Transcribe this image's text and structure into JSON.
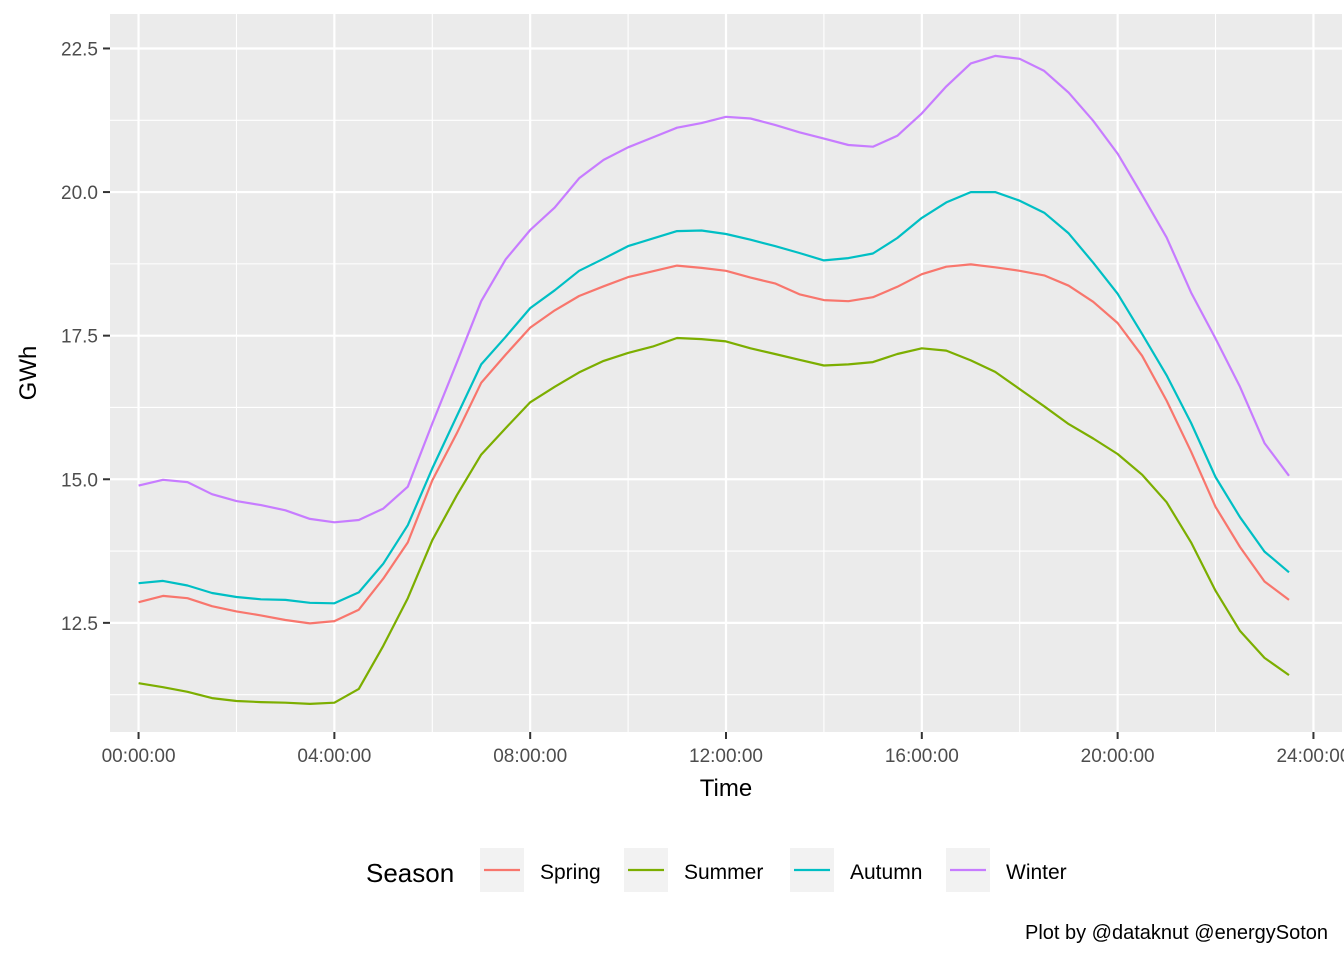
{
  "chart_data": {
    "type": "line",
    "xlabel": "Time",
    "ylabel": "GWh",
    "caption": "Plot by @dataknut @energySoton",
    "legend": {
      "title": "Season",
      "position": "bottom"
    },
    "grid": true,
    "x_unit": "time of day",
    "x": [
      "00:00:00",
      "00:30:00",
      "01:00:00",
      "01:30:00",
      "02:00:00",
      "02:30:00",
      "03:00:00",
      "03:30:00",
      "04:00:00",
      "04:30:00",
      "05:00:00",
      "05:30:00",
      "06:00:00",
      "06:30:00",
      "07:00:00",
      "07:30:00",
      "08:00:00",
      "08:30:00",
      "09:00:00",
      "09:30:00",
      "10:00:00",
      "10:30:00",
      "11:00:00",
      "11:30:00",
      "12:00:00",
      "12:30:00",
      "13:00:00",
      "13:30:00",
      "14:00:00",
      "14:30:00",
      "15:00:00",
      "15:30:00",
      "16:00:00",
      "16:30:00",
      "17:00:00",
      "17:30:00",
      "18:00:00",
      "18:30:00",
      "19:00:00",
      "19:30:00",
      "20:00:00",
      "20:30:00",
      "21:00:00",
      "21:30:00",
      "22:00:00",
      "22:30:00",
      "23:00:00",
      "23:30:00"
    ],
    "xlim": [
      "-00:35:00",
      "24:35:00"
    ],
    "x_ticks": [
      "00:00:00",
      "04:00:00",
      "08:00:00",
      "12:00:00",
      "16:00:00",
      "20:00:00",
      "24:00:00"
    ],
    "ylim": [
      10.6,
      23.1
    ],
    "y_ticks": [
      "12.5",
      "15.0",
      "17.5",
      "20.0",
      "22.5"
    ],
    "series": [
      {
        "name": "Spring",
        "color": "#F8766D",
        "values": [
          12.86,
          12.97,
          12.93,
          12.79,
          12.7,
          12.63,
          12.55,
          12.49,
          12.53,
          12.73,
          13.27,
          13.9,
          14.98,
          15.8,
          16.68,
          17.17,
          17.64,
          17.94,
          18.19,
          18.36,
          18.52,
          18.62,
          18.72,
          18.68,
          18.63,
          18.51,
          18.41,
          18.22,
          18.12,
          18.1,
          18.17,
          18.35,
          18.57,
          18.7,
          18.74,
          18.69,
          18.63,
          18.55,
          18.37,
          18.09,
          17.72,
          17.15,
          16.37,
          15.48,
          14.52,
          13.82,
          13.22,
          12.9
        ]
      },
      {
        "name": "Summer",
        "color": "#7CAE00",
        "values": [
          11.45,
          11.38,
          11.3,
          11.19,
          11.14,
          11.12,
          11.11,
          11.09,
          11.11,
          11.35,
          12.1,
          12.93,
          13.94,
          14.72,
          15.43,
          15.89,
          16.34,
          16.61,
          16.86,
          17.06,
          17.2,
          17.31,
          17.46,
          17.44,
          17.4,
          17.28,
          17.18,
          17.08,
          16.98,
          17.0,
          17.04,
          17.18,
          17.28,
          17.24,
          17.07,
          16.87,
          16.57,
          16.27,
          15.96,
          15.71,
          15.44,
          15.08,
          14.6,
          13.9,
          13.06,
          12.36,
          11.89,
          11.59
        ]
      },
      {
        "name": "Autumn",
        "color": "#00BFC4",
        "values": [
          13.19,
          13.23,
          13.15,
          13.02,
          12.95,
          12.91,
          12.9,
          12.85,
          12.84,
          13.03,
          13.53,
          14.2,
          15.19,
          16.1,
          17.0,
          17.48,
          17.98,
          18.29,
          18.63,
          18.84,
          19.06,
          19.19,
          19.32,
          19.33,
          19.27,
          19.17,
          19.06,
          18.94,
          18.81,
          18.85,
          18.93,
          19.2,
          19.55,
          19.82,
          20.0,
          20.0,
          19.85,
          19.64,
          19.28,
          18.77,
          18.23,
          17.53,
          16.81,
          15.98,
          15.04,
          14.34,
          13.74,
          13.38
        ]
      },
      {
        "name": "Winter",
        "color": "#C77CFF",
        "values": [
          14.89,
          14.99,
          14.95,
          14.74,
          14.62,
          14.55,
          14.46,
          14.31,
          14.25,
          14.29,
          14.49,
          14.87,
          15.97,
          17.03,
          18.1,
          18.83,
          19.34,
          19.73,
          20.24,
          20.56,
          20.78,
          20.95,
          21.12,
          21.2,
          21.31,
          21.28,
          21.17,
          21.04,
          20.93,
          20.82,
          20.79,
          20.98,
          21.37,
          21.84,
          22.24,
          22.37,
          22.32,
          22.11,
          21.73,
          21.24,
          20.67,
          19.95,
          19.21,
          18.25,
          17.45,
          16.61,
          15.63,
          15.06
        ]
      }
    ]
  }
}
